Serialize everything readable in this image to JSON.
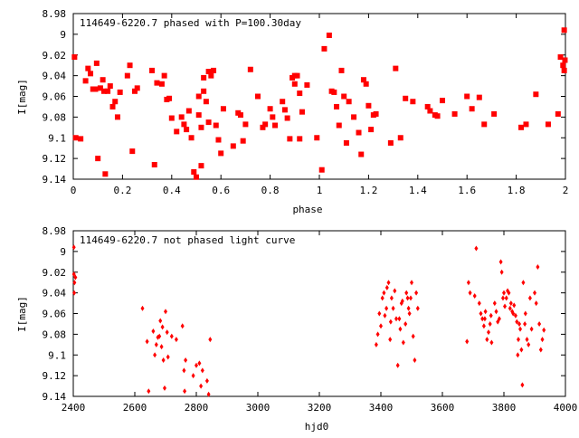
{
  "chart_data": [
    {
      "type": "scatter",
      "title": "114649-6220.7 phased with P=100.30day",
      "xlabel": "phase",
      "ylabel": "I[mag]",
      "xlim": [
        0,
        2
      ],
      "ylim": [
        9.14,
        8.98
      ],
      "y_inverted": true,
      "xticks": [
        "0",
        "0.2",
        "0.4",
        "0.6",
        "0.8",
        "1",
        "1.2",
        "1.4",
        "1.6",
        "1.8",
        "2"
      ],
      "yticks": [
        "8.98",
        "9",
        "9.02",
        "9.04",
        "9.06",
        "9.08",
        "9.1",
        "9.12",
        "9.14"
      ],
      "marker_color": "#ff0000",
      "marker": "filled-square",
      "grid": false,
      "points": [
        [
          0.005,
          9.022
        ],
        [
          0.01,
          9.1
        ],
        [
          0.03,
          9.101
        ],
        [
          0.05,
          9.045
        ],
        [
          0.06,
          9.033
        ],
        [
          0.07,
          9.038
        ],
        [
          0.08,
          9.053
        ],
        [
          0.09,
          9.053
        ],
        [
          0.095,
          9.028
        ],
        [
          0.1,
          9.12
        ],
        [
          0.11,
          9.052
        ],
        [
          0.12,
          9.044
        ],
        [
          0.125,
          9.055
        ],
        [
          0.13,
          9.135
        ],
        [
          0.14,
          9.055
        ],
        [
          0.15,
          9.05
        ],
        [
          0.16,
          9.07
        ],
        [
          0.17,
          9.065
        ],
        [
          0.18,
          9.08
        ],
        [
          0.19,
          9.056
        ],
        [
          0.22,
          9.04
        ],
        [
          0.23,
          9.03
        ],
        [
          0.24,
          9.113
        ],
        [
          0.25,
          9.055
        ],
        [
          0.26,
          9.052
        ],
        [
          0.32,
          9.035
        ],
        [
          0.33,
          9.126
        ],
        [
          0.34,
          9.047
        ],
        [
          0.36,
          9.048
        ],
        [
          0.37,
          9.04
        ],
        [
          0.38,
          9.063
        ],
        [
          0.39,
          9.062
        ],
        [
          0.4,
          9.081
        ],
        [
          0.42,
          9.094
        ],
        [
          0.44,
          9.08
        ],
        [
          0.45,
          9.087
        ],
        [
          0.46,
          9.092
        ],
        [
          0.47,
          9.074
        ],
        [
          0.48,
          9.1
        ],
        [
          0.49,
          9.133
        ],
        [
          0.5,
          9.138
        ],
        [
          0.51,
          9.06
        ],
        [
          0.51,
          9.078
        ],
        [
          0.52,
          9.09
        ],
        [
          0.52,
          9.127
        ],
        [
          0.53,
          9.042
        ],
        [
          0.53,
          9.055
        ],
        [
          0.54,
          9.065
        ],
        [
          0.55,
          9.085
        ],
        [
          0.55,
          9.036
        ],
        [
          0.56,
          9.04
        ],
        [
          0.57,
          9.035
        ],
        [
          0.58,
          9.088
        ],
        [
          0.59,
          9.102
        ],
        [
          0.6,
          9.115
        ],
        [
          0.61,
          9.072
        ],
        [
          0.65,
          9.108
        ],
        [
          0.67,
          9.076
        ],
        [
          0.68,
          9.078
        ],
        [
          0.69,
          9.103
        ],
        [
          0.7,
          9.087
        ],
        [
          0.72,
          9.034
        ],
        [
          0.75,
          9.06
        ],
        [
          0.77,
          9.09
        ],
        [
          0.78,
          9.087
        ],
        [
          0.8,
          9.072
        ],
        [
          0.81,
          9.08
        ],
        [
          0.82,
          9.088
        ],
        [
          0.85,
          9.065
        ],
        [
          0.86,
          9.073
        ],
        [
          0.87,
          9.081
        ],
        [
          0.88,
          9.101
        ],
        [
          0.89,
          9.042
        ],
        [
          0.9,
          9.04
        ],
        [
          0.9,
          9.048
        ],
        [
          0.91,
          9.04
        ],
        [
          0.92,
          9.057
        ],
        [
          0.92,
          9.101
        ],
        [
          0.93,
          9.075
        ],
        [
          0.95,
          9.049
        ],
        [
          0.99,
          9.1
        ],
        [
          1.01,
          9.131
        ],
        [
          1.02,
          9.014
        ],
        [
          1.04,
          9.001
        ],
        [
          1.05,
          9.055
        ],
        [
          1.06,
          9.056
        ],
        [
          1.07,
          9.07
        ],
        [
          1.08,
          9.088
        ],
        [
          1.09,
          9.035
        ],
        [
          1.1,
          9.06
        ],
        [
          1.11,
          9.105
        ],
        [
          1.12,
          9.065
        ],
        [
          1.14,
          9.08
        ],
        [
          1.16,
          9.095
        ],
        [
          1.17,
          9.116
        ],
        [
          1.18,
          9.044
        ],
        [
          1.19,
          9.048
        ],
        [
          1.2,
          9.069
        ],
        [
          1.21,
          9.092
        ],
        [
          1.22,
          9.078
        ],
        [
          1.23,
          9.077
        ],
        [
          1.29,
          9.105
        ],
        [
          1.31,
          9.033
        ],
        [
          1.33,
          9.1
        ],
        [
          1.35,
          9.062
        ],
        [
          1.38,
          9.065
        ],
        [
          1.44,
          9.07
        ],
        [
          1.45,
          9.074
        ],
        [
          1.47,
          9.078
        ],
        [
          1.48,
          9.079
        ],
        [
          1.5,
          9.064
        ],
        [
          1.55,
          9.077
        ],
        [
          1.6,
          9.06
        ],
        [
          1.62,
          9.072
        ],
        [
          1.65,
          9.061
        ],
        [
          1.67,
          9.087
        ],
        [
          1.71,
          9.077
        ],
        [
          1.82,
          9.09
        ],
        [
          1.84,
          9.087
        ],
        [
          1.88,
          9.058
        ],
        [
          1.93,
          9.087
        ],
        [
          1.97,
          9.077
        ],
        [
          1.98,
          9.022
        ],
        [
          1.99,
          9.03
        ],
        [
          1.995,
          9.035
        ],
        [
          1.998,
          9.025
        ],
        [
          1.995,
          8.996
        ]
      ]
    },
    {
      "type": "scatter",
      "title": "114649-6220.7 not phased light curve",
      "xlabel": "hjd0",
      "ylabel": "I[mag]",
      "xlim": [
        2400,
        4000
      ],
      "ylim": [
        9.14,
        8.98
      ],
      "y_inverted": true,
      "xticks": [
        "2400",
        "2600",
        "2800",
        "3000",
        "3200",
        "3400",
        "3600",
        "3800",
        "4000"
      ],
      "yticks": [
        "8.98",
        "9",
        "9.02",
        "9.04",
        "9.06",
        "9.08",
        "9.1",
        "9.12",
        "9.14"
      ],
      "marker_color": "#ff0000",
      "marker": "small-diamond",
      "grid": false,
      "points": [
        [
          2402,
          8.996
        ],
        [
          2402,
          9.022
        ],
        [
          2403,
          9.04
        ],
        [
          2404,
          9.03
        ],
        [
          2407,
          9.025
        ],
        [
          2625,
          9.055
        ],
        [
          2640,
          9.087
        ],
        [
          2645,
          9.135
        ],
        [
          2660,
          9.077
        ],
        [
          2665,
          9.1
        ],
        [
          2670,
          9.09
        ],
        [
          2675,
          9.083
        ],
        [
          2680,
          9.082
        ],
        [
          2683,
          9.067
        ],
        [
          2687,
          9.092
        ],
        [
          2690,
          9.073
        ],
        [
          2693,
          9.105
        ],
        [
          2697,
          9.132
        ],
        [
          2700,
          9.058
        ],
        [
          2705,
          9.078
        ],
        [
          2708,
          9.102
        ],
        [
          2720,
          9.082
        ],
        [
          2735,
          9.085
        ],
        [
          2755,
          9.072
        ],
        [
          2760,
          9.115
        ],
        [
          2762,
          9.135
        ],
        [
          2765,
          9.105
        ],
        [
          2790,
          9.12
        ],
        [
          2800,
          9.11
        ],
        [
          2810,
          9.108
        ],
        [
          2815,
          9.13
        ],
        [
          2820,
          9.115
        ],
        [
          2835,
          9.125
        ],
        [
          2840,
          9.138
        ],
        [
          2845,
          9.085
        ],
        [
          3385,
          9.09
        ],
        [
          3390,
          9.08
        ],
        [
          3395,
          9.06
        ],
        [
          3400,
          9.072
        ],
        [
          3405,
          9.045
        ],
        [
          3410,
          9.04
        ],
        [
          3413,
          9.062
        ],
        [
          3418,
          9.055
        ],
        [
          3420,
          9.035
        ],
        [
          3425,
          9.03
        ],
        [
          3430,
          9.085
        ],
        [
          3432,
          9.068
        ],
        [
          3435,
          9.045
        ],
        [
          3440,
          9.055
        ],
        [
          3445,
          9.038
        ],
        [
          3450,
          9.065
        ],
        [
          3455,
          9.11
        ],
        [
          3460,
          9.065
        ],
        [
          3463,
          9.075
        ],
        [
          3467,
          9.05
        ],
        [
          3470,
          9.048
        ],
        [
          3473,
          9.088
        ],
        [
          3480,
          9.07
        ],
        [
          3483,
          9.04
        ],
        [
          3487,
          9.045
        ],
        [
          3490,
          9.055
        ],
        [
          3493,
          9.06
        ],
        [
          3497,
          9.045
        ],
        [
          3500,
          9.03
        ],
        [
          3505,
          9.082
        ],
        [
          3510,
          9.105
        ],
        [
          3515,
          9.04
        ],
        [
          3520,
          9.055
        ],
        [
          3680,
          9.087
        ],
        [
          3685,
          9.03
        ],
        [
          3690,
          9.04
        ],
        [
          3705,
          9.043
        ],
        [
          3710,
          8.997
        ],
        [
          3720,
          9.05
        ],
        [
          3725,
          9.06
        ],
        [
          3730,
          9.065
        ],
        [
          3735,
          9.072
        ],
        [
          3738,
          9.065
        ],
        [
          3740,
          9.058
        ],
        [
          3745,
          9.085
        ],
        [
          3750,
          9.078
        ],
        [
          3755,
          9.07
        ],
        [
          3758,
          9.062
        ],
        [
          3760,
          9.088
        ],
        [
          3770,
          9.05
        ],
        [
          3775,
          9.058
        ],
        [
          3780,
          9.068
        ],
        [
          3785,
          9.065
        ],
        [
          3790,
          9.01
        ],
        [
          3793,
          9.02
        ],
        [
          3797,
          9.045
        ],
        [
          3800,
          9.04
        ],
        [
          3803,
          9.053
        ],
        [
          3808,
          9.045
        ],
        [
          3812,
          9.038
        ],
        [
          3816,
          9.04
        ],
        [
          3820,
          9.055
        ],
        [
          3823,
          9.05
        ],
        [
          3827,
          9.058
        ],
        [
          3830,
          9.06
        ],
        [
          3833,
          9.052
        ],
        [
          3838,
          9.062
        ],
        [
          3842,
          9.068
        ],
        [
          3845,
          9.1
        ],
        [
          3847,
          9.085
        ],
        [
          3850,
          9.07
        ],
        [
          3853,
          9.075
        ],
        [
          3857,
          9.095
        ],
        [
          3860,
          9.129
        ],
        [
          3863,
          9.03
        ],
        [
          3868,
          9.07
        ],
        [
          3870,
          9.06
        ],
        [
          3875,
          9.085
        ],
        [
          3880,
          9.09
        ],
        [
          3885,
          9.045
        ],
        [
          3890,
          9.075
        ],
        [
          3900,
          9.04
        ],
        [
          3905,
          9.05
        ],
        [
          3910,
          9.015
        ],
        [
          3915,
          9.07
        ],
        [
          3920,
          9.095
        ],
        [
          3925,
          9.085
        ],
        [
          3930,
          9.076
        ]
      ]
    }
  ]
}
